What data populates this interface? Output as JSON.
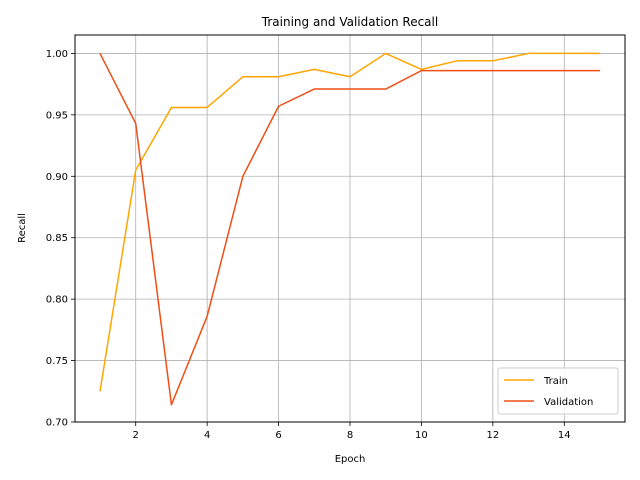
{
  "chart_data": {
    "type": "line",
    "title": "Training and Validation Recall",
    "xlabel": "Epoch",
    "ylabel": "Recall",
    "x": [
      1,
      2,
      3,
      4,
      5,
      6,
      7,
      8,
      9,
      10,
      11,
      12,
      13,
      14,
      15
    ],
    "xlim": [
      0.3,
      15.7
    ],
    "ylim": [
      0.7,
      1.015
    ],
    "xticks": [
      2,
      4,
      6,
      8,
      10,
      12,
      14
    ],
    "yticks": [
      0.7,
      0.75,
      0.8,
      0.85,
      0.9,
      0.95,
      1.0
    ],
    "ytick_labels": [
      "0.70",
      "0.75",
      "0.80",
      "0.85",
      "0.90",
      "0.95",
      "1.00"
    ],
    "grid": true,
    "legend_position": "lower-right",
    "series": [
      {
        "name": "Train",
        "color": "#FFA500",
        "values": [
          0.725,
          0.905,
          0.956,
          0.956,
          0.981,
          0.981,
          0.987,
          0.981,
          1.0,
          0.987,
          0.994,
          0.994,
          1.0,
          1.0,
          1.0
        ]
      },
      {
        "name": "Validation",
        "color": "#F04E14",
        "values": [
          1.0,
          0.943,
          0.714,
          0.786,
          0.9,
          0.957,
          0.971,
          0.971,
          0.971,
          0.986,
          0.986,
          0.986,
          0.986,
          0.986,
          0.986
        ]
      }
    ]
  }
}
